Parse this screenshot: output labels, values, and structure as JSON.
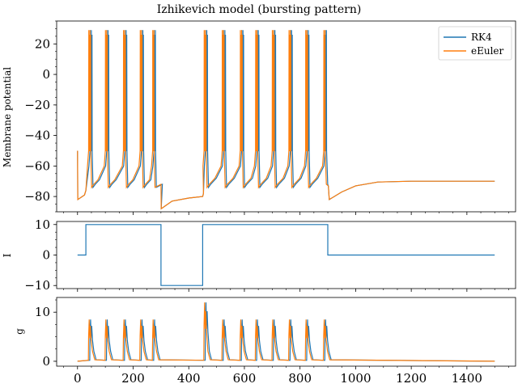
{
  "chart_data": [
    {
      "type": "line",
      "title": "Izhikevich model (bursting pattern)",
      "ylabel": "Membrane potential",
      "xlim": [
        -75,
        1575
      ],
      "ylim": [
        -90,
        35
      ],
      "yticks": [
        20,
        0,
        -20,
        -40,
        -60,
        -80
      ],
      "legend": {
        "placement": "top-right"
      },
      "burst_times": [
        40,
        100,
        165,
        225,
        270,
        455,
        520,
        585,
        640,
        700,
        760,
        820,
        885
      ],
      "series": [
        {
          "name": "RK4",
          "color": "#1f77b4"
        },
        {
          "name": "eEuler",
          "color": "#ff7f0e"
        }
      ],
      "rest_level": -70
    },
    {
      "type": "line",
      "ylabel": "I",
      "xlim": [
        -75,
        1575
      ],
      "ylim": [
        -11,
        11
      ],
      "yticks": [
        10,
        0,
        -10
      ],
      "series": [
        {
          "color": "#1f77b4",
          "x": [
            0,
            30,
            30,
            300,
            300,
            450,
            450,
            900,
            900,
            1500
          ],
          "y": [
            0,
            0,
            10,
            10,
            -10,
            -10,
            10,
            10,
            0,
            0
          ]
        }
      ]
    },
    {
      "type": "line",
      "ylabel": "g",
      "xlim": [
        -75,
        1575
      ],
      "ylim": [
        -1,
        13
      ],
      "yticks": [
        10,
        0
      ],
      "xticks": [
        0,
        200,
        400,
        600,
        800,
        1000,
        1200,
        1400
      ],
      "series": [
        {
          "color": "#1f77b4"
        },
        {
          "color": "#ff7f0e"
        }
      ]
    }
  ]
}
